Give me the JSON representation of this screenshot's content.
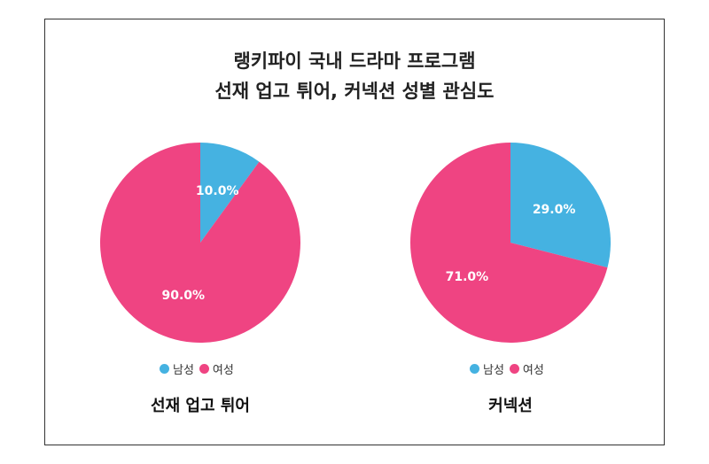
{
  "title_line1": "랭키파이 국내 드라마 프로그램",
  "title_line2": "선재 업고 튀어, 커넥션 성별 관심도",
  "colors": {
    "male": "#45b2e1",
    "female": "#ef4482"
  },
  "chart_data": [
    {
      "type": "pie",
      "title": "선재 업고 튀어",
      "labels": [
        "남성",
        "여성"
      ],
      "values": [
        10.0,
        90.0
      ],
      "value_labels": [
        "10.0%",
        "90.0%"
      ],
      "legend_position": "bottom"
    },
    {
      "type": "pie",
      "title": "커넥션",
      "labels": [
        "남성",
        "여성"
      ],
      "values": [
        29.0,
        71.0
      ],
      "value_labels": [
        "29.0%",
        "71.0%"
      ],
      "legend_position": "bottom"
    }
  ]
}
